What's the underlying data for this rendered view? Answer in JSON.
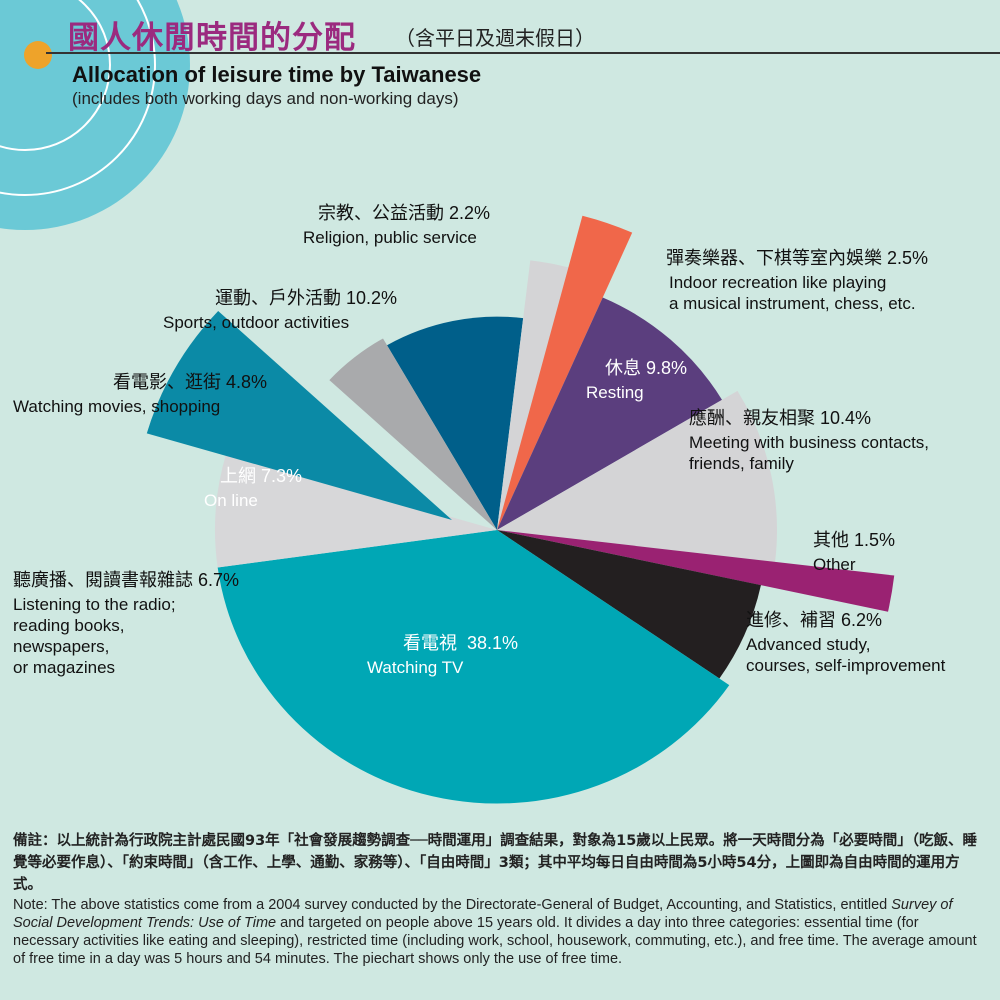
{
  "header": {
    "title_zh": "國人休閒時間的分配",
    "title_zh_sub": "（含平日及週末假日）",
    "title_en": "Allocation of leisure time by Taiwanese",
    "subtitle_en": "(includes both working days and non-working days)"
  },
  "chart_data": {
    "type": "pie",
    "title": "Allocation of leisure time by Taiwanese",
    "unit": "%",
    "slices": [
      {
        "zh": "運動、戶外活動",
        "en": "Sports, outdoor activities",
        "value": 10.2,
        "value_label": "10.2%",
        "color": "#005f8a"
      },
      {
        "zh": "宗教、公益活動",
        "en": "Religion, public service",
        "value": 2.2,
        "value_label": "2.2%",
        "color": "#d4d4d6"
      },
      {
        "zh": "彈奏樂器、下棋等室內娛樂",
        "en": "Indoor recreation like playing",
        "en2": "a musical instrument, chess, etc.",
        "value": 2.5,
        "value_label": "2.5%",
        "color": "#f0674a"
      },
      {
        "zh": "休息",
        "en": "Resting",
        "value": 9.8,
        "value_label": "9.8%",
        "color": "#5b3e7e"
      },
      {
        "zh": "應酬、親友相聚",
        "en": "Meeting with business contacts,",
        "en2": "friends, family",
        "value": 10.4,
        "value_label": "10.4%",
        "color": "#d4d4d6"
      },
      {
        "zh": "其他",
        "en": "Other",
        "value": 1.5,
        "value_label": "1.5%",
        "color": "#9a2272"
      },
      {
        "zh": "進修、補習",
        "en": "Advanced study,",
        "en2": "courses, self-improvement",
        "value": 6.2,
        "value_label": "6.2%",
        "color": "#231f20"
      },
      {
        "zh": "看電視",
        "en": "Watching TV",
        "value": 38.1,
        "value_label": "38.1%",
        "color": "#00a7b5"
      },
      {
        "zh": "聽廣播、閱讀書報雜誌",
        "en": "Listening to the radio;",
        "en2": "reading books,",
        "en3": "newspapers,",
        "en4": "or magazines",
        "value": 6.7,
        "value_label": "6.7%",
        "color": "#d7d7d9"
      },
      {
        "zh": "上網",
        "en": "On line",
        "value": 7.3,
        "value_label": "7.3%",
        "color": "#0b8aa6"
      },
      {
        "zh": "看電影、逛街",
        "en": "Watching movies, shopping",
        "value": 4.8,
        "value_label": "4.8%",
        "color": "#a9aaac"
      }
    ]
  },
  "note": {
    "zh": "備註：以上統計為行政院主計處民國93年「社會發展趨勢調查──時間運用」調查結果，對象為15歲以上民眾。將一天時間分為「必要時間」（吃飯、睡覺等必要作息）、「約束時間」（含工作、上學、通勤、家務等）、「自由時間」3類；其中平均每日自由時間為5小時54分，上圖即為自由時間的運用方式。",
    "en_before": "Note: The above statistics come from a 2004 survey conducted by the Directorate-General of Budget, Accounting, and Statistics, entitled ",
    "en_title": "Survey of Social Development Trends: Use of Time",
    "en_after": " and targeted on people above 15 years old. It divides a day into three categories: essential time (for necessary activities like eating and sleeping), restricted time (including work, school, housework, commuting, etc.), and free time. The average amount of free time in a day was 5 hours and 54 minutes. The piechart shows only the use of free time."
  }
}
